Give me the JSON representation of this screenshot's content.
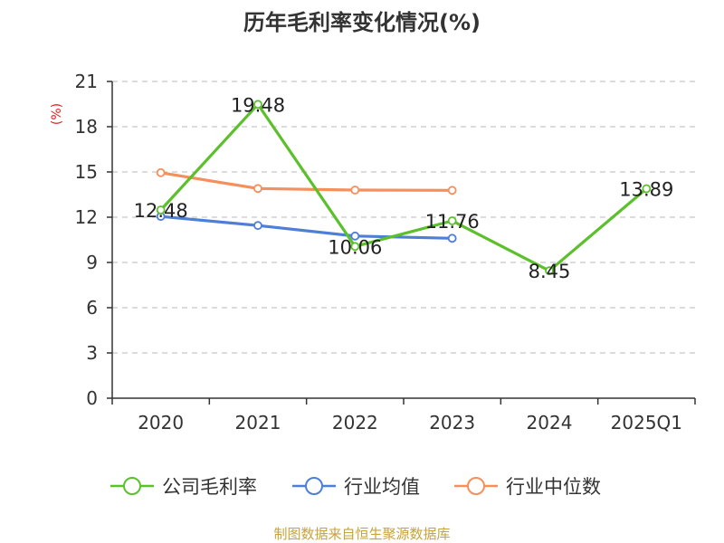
{
  "chart_data": {
    "type": "line",
    "title": "历年毛利率变化情况(%)",
    "ylabel": "(%)",
    "xlabel": "",
    "ylim": [
      0,
      21
    ],
    "yticks": [
      0,
      3,
      6,
      9,
      12,
      15,
      18,
      21
    ],
    "grid": true,
    "legend_position": "bottom",
    "categories": [
      "2020",
      "2021",
      "2022",
      "2023",
      "2024",
      "2025Q1"
    ],
    "series": [
      {
        "name": "公司毛利率",
        "color": "#5cc02c",
        "labeled": true,
        "values": [
          12.48,
          19.48,
          10.06,
          11.76,
          8.45,
          13.89
        ]
      },
      {
        "name": "行业均值",
        "color": "#4e7fd8",
        "labeled": false,
        "values": [
          12.05,
          11.45,
          10.75,
          10.6,
          null,
          null
        ]
      },
      {
        "name": "行业中位数",
        "color": "#f58f5b",
        "labeled": false,
        "values": [
          14.95,
          13.9,
          13.8,
          13.78,
          null,
          null
        ]
      }
    ]
  },
  "colors": {
    "ylabel": "#e02020",
    "source": "#c8a23a",
    "axis": "#333333",
    "grid": "#c8c8c8"
  },
  "footer": {
    "source": "制图数据来自恒生聚源数据库"
  }
}
